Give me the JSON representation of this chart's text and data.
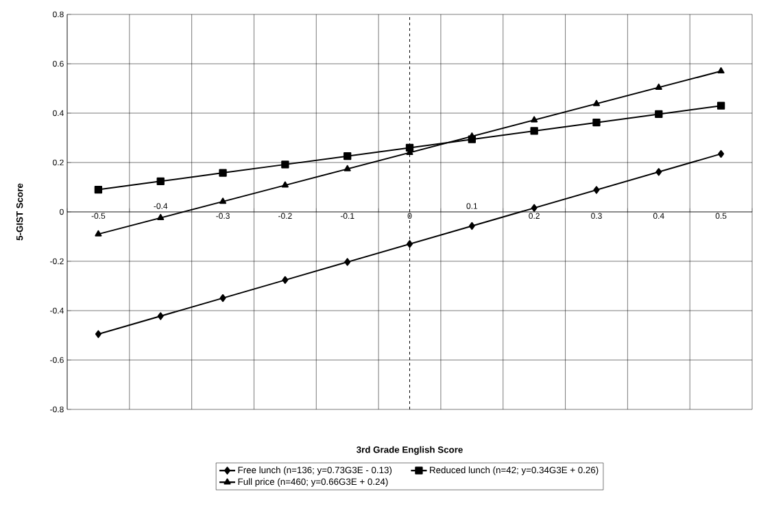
{
  "chart_data": {
    "type": "line",
    "xlabel": "3rd Grade English Score",
    "ylabel": "5-GIST Score",
    "categories": [
      "-0.5",
      "-0.4",
      "-0.3",
      "-0.2",
      "-0.1",
      "0",
      "0.1",
      "0.2",
      "0.3",
      "0.4",
      "0.5"
    ],
    "series": [
      {
        "name": "Free lunch (n=136; y=0.73G3E - 0.13)",
        "color": "#000000",
        "marker": "diamond",
        "values": [
          -0.495,
          -0.422,
          -0.349,
          -0.276,
          -0.203,
          -0.13,
          -0.057,
          0.016,
          0.089,
          0.162,
          0.235
        ]
      },
      {
        "name": "Reduced lunch (n=42; y=0.34G3E + 0.26)",
        "color": "#000000",
        "marker": "square",
        "values": [
          0.09,
          0.124,
          0.158,
          0.192,
          0.226,
          0.26,
          0.294,
          0.328,
          0.362,
          0.396,
          0.43
        ]
      },
      {
        "name": "Full price (n=460; y=0.66G3E + 0.24)",
        "color": "#000000",
        "marker": "triangle",
        "values": [
          -0.09,
          -0.024,
          0.042,
          0.108,
          0.174,
          0.24,
          0.306,
          0.372,
          0.438,
          0.504,
          0.57
        ]
      }
    ],
    "ylim": [
      -0.8,
      0.8
    ],
    "yticks": [
      -0.8,
      -0.6,
      -0.4,
      -0.2,
      0,
      0.2,
      0.4,
      0.6,
      0.8
    ],
    "ref_lines": [
      {
        "axis": "x",
        "value": "0",
        "color": "#000000",
        "line_style": "dashed"
      }
    ],
    "grid": true,
    "legend": "bottom",
    "line_style": "solid"
  }
}
